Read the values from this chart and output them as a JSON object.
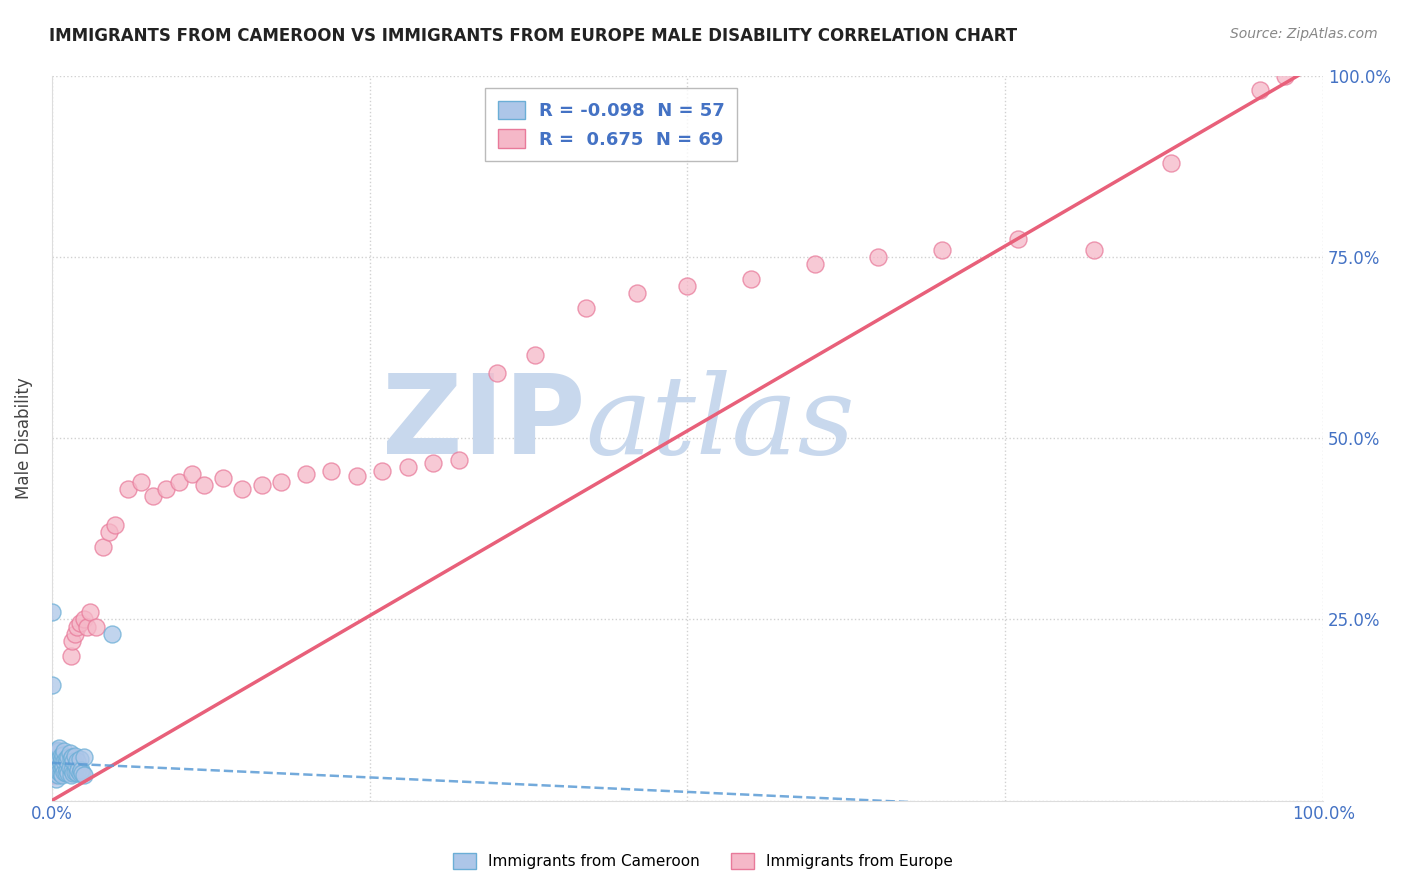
{
  "title": "IMMIGRANTS FROM CAMEROON VS IMMIGRANTS FROM EUROPE MALE DISABILITY CORRELATION CHART",
  "source": "Source: ZipAtlas.com",
  "ylabel": "Male Disability",
  "xlim": [
    0,
    1.0
  ],
  "ylim": [
    0,
    1.0
  ],
  "xticks": [
    0.0,
    0.25,
    0.5,
    0.75,
    1.0
  ],
  "xticklabels": [
    "0.0%",
    "",
    "",
    "",
    "100.0%"
  ],
  "yticks": [
    0.0,
    0.25,
    0.5,
    0.75,
    1.0
  ],
  "yticklabels": [
    "",
    "25.0%",
    "50.0%",
    "75.0%",
    "100.0%"
  ],
  "blue_R": -0.098,
  "blue_N": 57,
  "pink_R": 0.675,
  "pink_N": 69,
  "blue_color": "#adc6e8",
  "pink_color": "#f5b8c8",
  "blue_edge_color": "#6baed6",
  "pink_edge_color": "#e87a9a",
  "blue_line_color": "#5b9bd5",
  "pink_line_color": "#e8607a",
  "background_color": "#ffffff",
  "watermark": "ZIPatlas",
  "watermark_color": "#c8d8ed",
  "legend_color": "#4472c4",
  "blue_intercept": 0.052,
  "blue_slope": -0.08,
  "pink_intercept": 0.0,
  "pink_slope": 1.02,
  "blue_scatter_x": [
    0.001,
    0.001,
    0.002,
    0.002,
    0.002,
    0.003,
    0.003,
    0.003,
    0.004,
    0.004,
    0.004,
    0.005,
    0.005,
    0.005,
    0.006,
    0.006,
    0.006,
    0.007,
    0.007,
    0.007,
    0.008,
    0.008,
    0.008,
    0.009,
    0.009,
    0.01,
    0.01,
    0.01,
    0.011,
    0.011,
    0.012,
    0.012,
    0.013,
    0.013,
    0.014,
    0.014,
    0.015,
    0.015,
    0.016,
    0.016,
    0.017,
    0.017,
    0.018,
    0.018,
    0.019,
    0.02,
    0.02,
    0.021,
    0.022,
    0.022,
    0.023,
    0.024,
    0.025,
    0.025,
    0.047,
    0.0,
    0.0
  ],
  "blue_scatter_y": [
    0.04,
    0.055,
    0.038,
    0.05,
    0.06,
    0.042,
    0.065,
    0.03,
    0.045,
    0.055,
    0.07,
    0.035,
    0.05,
    0.068,
    0.04,
    0.058,
    0.072,
    0.038,
    0.052,
    0.062,
    0.043,
    0.057,
    0.035,
    0.048,
    0.063,
    0.04,
    0.055,
    0.068,
    0.038,
    0.058,
    0.042,
    0.055,
    0.038,
    0.06,
    0.045,
    0.065,
    0.035,
    0.058,
    0.042,
    0.06,
    0.038,
    0.055,
    0.04,
    0.062,
    0.048,
    0.038,
    0.055,
    0.042,
    0.038,
    0.058,
    0.042,
    0.038,
    0.035,
    0.06,
    0.23,
    0.26,
    0.16
  ],
  "pink_scatter_x": [
    0.0,
    0.001,
    0.001,
    0.002,
    0.002,
    0.003,
    0.003,
    0.004,
    0.004,
    0.005,
    0.005,
    0.006,
    0.006,
    0.007,
    0.007,
    0.008,
    0.008,
    0.009,
    0.01,
    0.01,
    0.011,
    0.012,
    0.013,
    0.014,
    0.015,
    0.015,
    0.016,
    0.018,
    0.02,
    0.022,
    0.025,
    0.028,
    0.03,
    0.035,
    0.04,
    0.045,
    0.05,
    0.06,
    0.07,
    0.08,
    0.09,
    0.1,
    0.11,
    0.12,
    0.135,
    0.15,
    0.165,
    0.18,
    0.2,
    0.22,
    0.24,
    0.26,
    0.28,
    0.3,
    0.32,
    0.35,
    0.38,
    0.42,
    0.46,
    0.5,
    0.55,
    0.6,
    0.65,
    0.7,
    0.76,
    0.82,
    0.88,
    0.95,
    0.97
  ],
  "pink_scatter_y": [
    0.04,
    0.038,
    0.06,
    0.035,
    0.055,
    0.042,
    0.058,
    0.038,
    0.06,
    0.042,
    0.055,
    0.038,
    0.065,
    0.04,
    0.055,
    0.038,
    0.06,
    0.045,
    0.04,
    0.058,
    0.05,
    0.042,
    0.058,
    0.048,
    0.06,
    0.2,
    0.22,
    0.23,
    0.24,
    0.245,
    0.25,
    0.24,
    0.26,
    0.24,
    0.35,
    0.37,
    0.38,
    0.43,
    0.44,
    0.42,
    0.43,
    0.44,
    0.45,
    0.435,
    0.445,
    0.43,
    0.435,
    0.44,
    0.45,
    0.455,
    0.448,
    0.455,
    0.46,
    0.465,
    0.47,
    0.59,
    0.615,
    0.68,
    0.7,
    0.71,
    0.72,
    0.74,
    0.75,
    0.76,
    0.775,
    0.76,
    0.88,
    0.98,
    1.0
  ]
}
